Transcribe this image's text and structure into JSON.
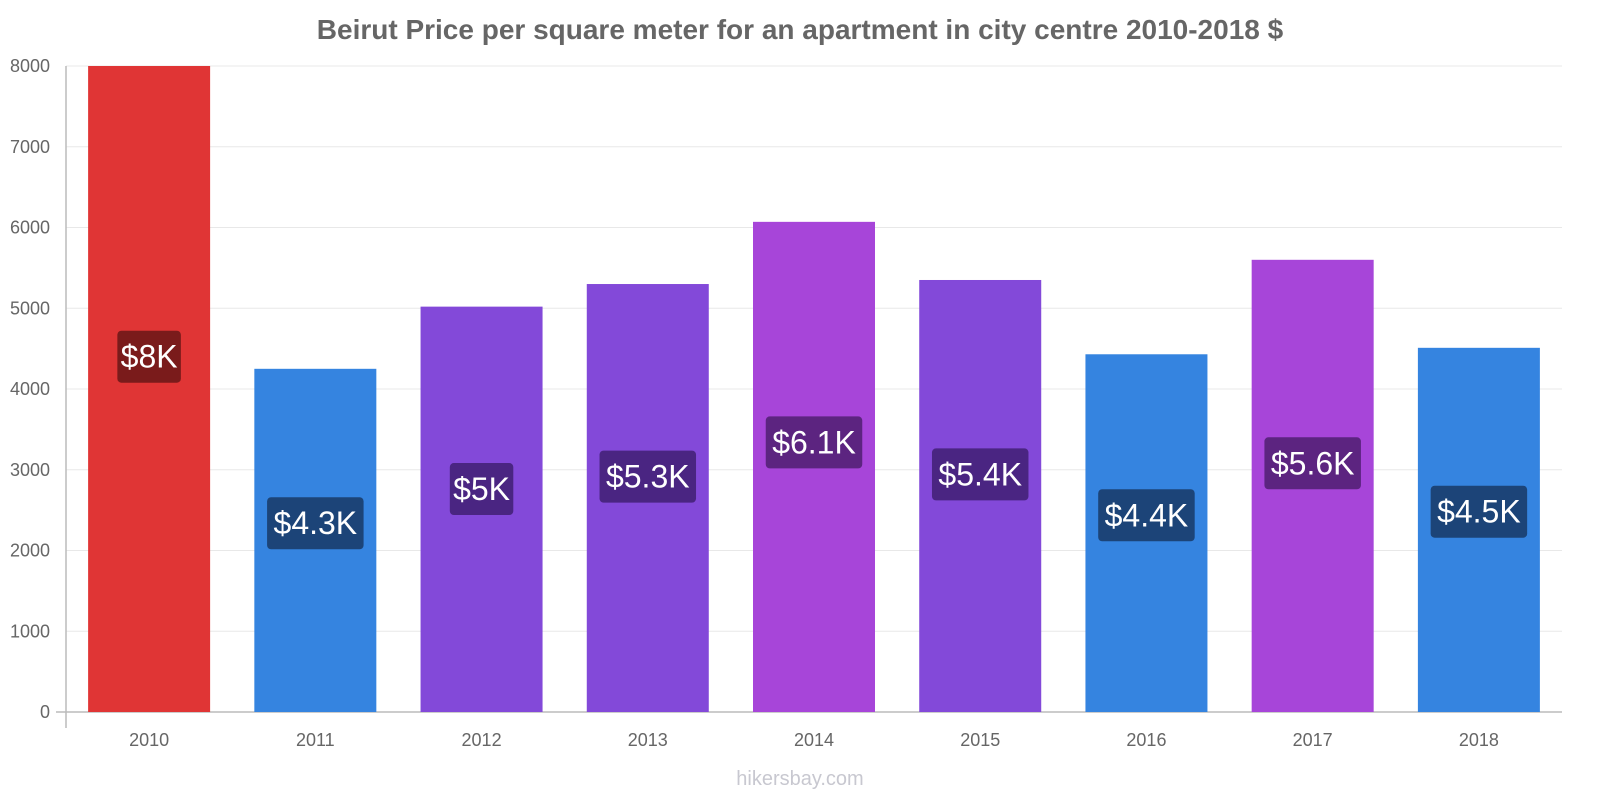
{
  "chart_data": {
    "type": "bar",
    "title": "Beirut Price per square meter for an apartment in city centre 2010-2018 $",
    "xlabel": "",
    "ylabel": "",
    "ylim": [
      0,
      8000
    ],
    "yticks": [
      0,
      1000,
      2000,
      3000,
      4000,
      5000,
      6000,
      7000,
      8000
    ],
    "grid": true,
    "categories": [
      "2010",
      "2011",
      "2012",
      "2013",
      "2014",
      "2015",
      "2016",
      "2017",
      "2018"
    ],
    "values": [
      8000,
      4250,
      5020,
      5300,
      6070,
      5350,
      4430,
      5600,
      4510
    ],
    "data_labels": [
      "$8K",
      "$4.3K",
      "$5K",
      "$5.3K",
      "$6.1K",
      "$5.4K",
      "$4.4K",
      "$5.6K",
      "$4.5K"
    ],
    "bar_colors": [
      "#e03535",
      "#3584e0",
      "#8349d9",
      "#8349d9",
      "#a745d9",
      "#8349d9",
      "#3584e0",
      "#a745d9",
      "#3584e0"
    ],
    "label_bg_colors": [
      "#7a1b1b",
      "#1c4478",
      "#4a2582",
      "#4a2582",
      "#5c2480",
      "#4a2582",
      "#1c4478",
      "#5c2480",
      "#1c4478"
    ]
  },
  "watermark": "hikersbay.com"
}
